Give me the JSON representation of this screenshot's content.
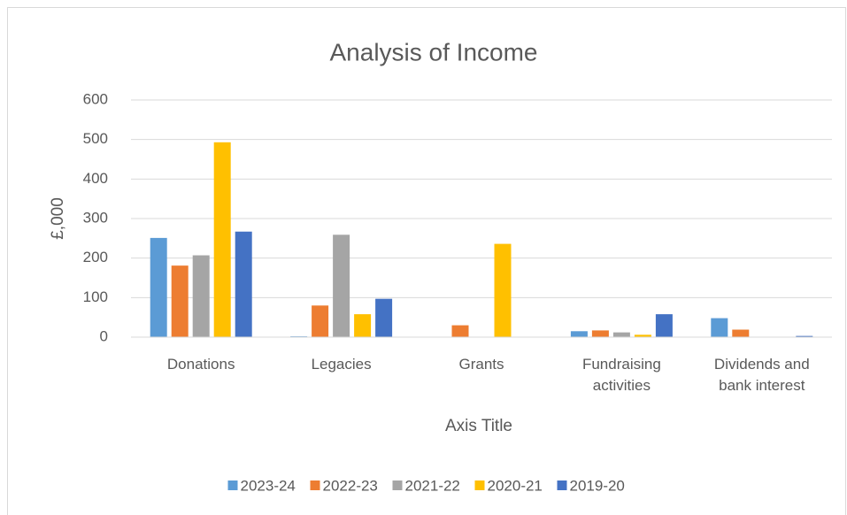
{
  "chart_data": {
    "type": "bar",
    "title": "Analysis of Income",
    "categories": [
      "Donations",
      "Legacies",
      "Grants",
      "Fundraising activities",
      "Dividends and bank interest"
    ],
    "series": [
      {
        "name": "2023-24",
        "color": "#5b9bd5",
        "values": [
          251,
          2,
          0,
          15,
          48
        ]
      },
      {
        "name": "2022-23",
        "color": "#ed7d31",
        "values": [
          181,
          80,
          30,
          17,
          19
        ]
      },
      {
        "name": "2021-22",
        "color": "#a5a5a5",
        "values": [
          207,
          259,
          0,
          12,
          0
        ]
      },
      {
        "name": "2020-21",
        "color": "#ffc000",
        "values": [
          493,
          58,
          236,
          6,
          0
        ]
      },
      {
        "name": "2019-20",
        "color": "#4472c4",
        "values": [
          267,
          97,
          0,
          58,
          3
        ]
      }
    ],
    "y_label": "£,000",
    "x_label": "Axis Title",
    "ylim": [
      0,
      600
    ],
    "yticks": [
      0,
      100,
      200,
      300,
      400,
      500,
      600
    ],
    "grid": true,
    "legend": "bottom"
  }
}
